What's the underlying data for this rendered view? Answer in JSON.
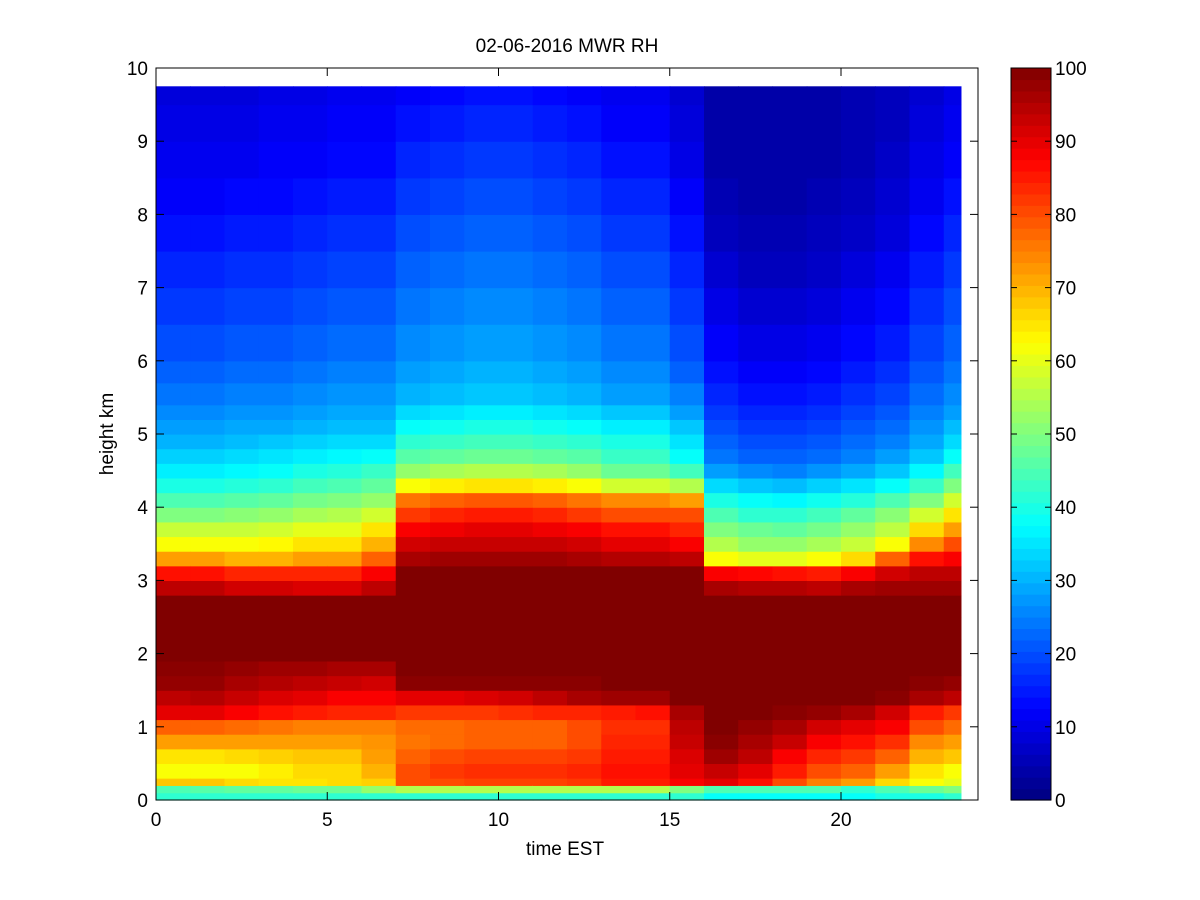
{
  "chart_data": {
    "type": "heatmap",
    "title": "02-06-2016 MWR RH",
    "xlabel": "time EST",
    "ylabel": "height km",
    "xlim": [
      0,
      24
    ],
    "ylim": [
      0,
      10
    ],
    "x_ticks": [
      0,
      5,
      10,
      15,
      20
    ],
    "y_ticks": [
      0,
      1,
      2,
      3,
      4,
      5,
      6,
      7,
      8,
      9,
      10
    ],
    "colorbar": {
      "min": 0,
      "max": 100,
      "ticks": [
        0,
        10,
        20,
        30,
        40,
        50,
        60,
        70,
        80,
        90,
        100
      ],
      "colormap": "jet"
    },
    "data_x_range": [
      0,
      23.5
    ],
    "data_y_top": 9.75,
    "times": [
      0,
      1,
      2,
      3,
      4,
      5,
      6,
      7,
      8,
      9,
      10,
      11,
      12,
      13,
      14,
      15,
      16,
      17,
      18,
      19,
      20,
      21,
      22,
      23
    ],
    "heights": [
      0,
      0.1,
      0.2,
      0.3,
      0.5,
      0.7,
      0.9,
      1.1,
      1.3,
      1.5,
      1.7,
      1.9,
      2.2,
      2.5,
      2.8,
      3.0,
      3.2,
      3.4,
      3.6,
      3.8,
      4.0,
      4.2,
      4.4,
      4.6,
      4.8,
      5.0,
      5.2,
      5.4,
      5.7,
      6.0,
      6.5,
      7.0,
      7.5,
      8.0,
      8.5,
      9.0,
      9.5
    ],
    "values": [
      [
        42,
        45,
        68,
        62,
        65,
        72,
        78,
        90,
        94,
        98,
        99,
        100,
        100,
        100,
        94,
        86,
        72,
        62,
        57,
        50,
        45,
        40,
        36,
        33,
        30,
        28,
        26,
        24,
        22,
        20,
        18,
        16,
        14,
        12,
        11,
        10,
        9
      ],
      [
        42,
        46,
        68,
        62,
        65,
        72,
        78,
        90,
        95,
        98,
        99,
        100,
        100,
        100,
        94,
        86,
        72,
        62,
        57,
        50,
        45,
        40,
        36,
        33,
        30,
        28,
        26,
        24,
        22,
        20,
        18,
        16,
        14,
        12,
        11,
        10,
        9
      ],
      [
        42,
        47,
        66,
        62,
        66,
        72,
        77,
        88,
        93,
        96,
        98,
        100,
        100,
        100,
        92,
        84,
        70,
        62,
        57,
        51,
        46,
        41,
        37,
        34,
        31,
        29,
        27,
        25,
        23,
        21,
        19,
        17,
        15,
        13,
        11,
        10,
        9
      ],
      [
        42,
        47,
        65,
        64,
        67,
        72,
        76,
        86,
        91,
        95,
        97,
        100,
        100,
        100,
        92,
        84,
        70,
        63,
        58,
        52,
        47,
        42,
        38,
        35,
        32,
        29,
        27,
        25,
        23,
        21,
        19,
        17,
        15,
        13,
        12,
        11,
        10
      ],
      [
        42,
        48,
        65,
        66,
        68,
        72,
        75,
        85,
        90,
        94,
        97,
        100,
        100,
        100,
        91,
        84,
        72,
        65,
        60,
        54,
        49,
        44,
        40,
        36,
        33,
        30,
        28,
        26,
        24,
        22,
        20,
        18,
        16,
        14,
        12,
        11,
        10
      ],
      [
        42,
        48,
        66,
        66,
        68,
        72,
        75,
        84,
        88,
        93,
        96,
        100,
        100,
        100,
        91,
        84,
        72,
        65,
        60,
        55,
        50,
        45,
        41,
        37,
        34,
        31,
        29,
        27,
        25,
        23,
        21,
        19,
        17,
        15,
        13,
        12,
        11
      ],
      [
        42,
        52,
        67,
        70,
        72,
        73,
        75,
        84,
        88,
        92,
        96,
        100,
        100,
        100,
        94,
        88,
        78,
        70,
        65,
        58,
        52,
        47,
        43,
        38,
        34,
        31,
        29,
        27,
        25,
        23,
        21,
        19,
        17,
        15,
        13,
        12,
        11
      ],
      [
        42,
        55,
        80,
        80,
        78,
        76,
        77,
        82,
        90,
        99,
        100,
        100,
        100,
        100,
        100,
        100,
        96,
        92,
        88,
        82,
        76,
        62,
        52,
        46,
        42,
        38,
        34,
        30,
        28,
        26,
        24,
        22,
        20,
        18,
        16,
        14,
        12
      ],
      [
        42,
        55,
        80,
        82,
        80,
        77,
        77,
        82,
        90,
        99,
        100,
        100,
        100,
        100,
        100,
        100,
        97,
        93,
        89,
        84,
        78,
        64,
        54,
        47,
        43,
        39,
        35,
        31,
        29,
        27,
        25,
        23,
        21,
        19,
        17,
        15,
        13
      ],
      [
        42,
        55,
        81,
        83,
        81,
        78,
        78,
        82,
        91,
        99,
        100,
        100,
        100,
        100,
        100,
        100,
        97,
        93,
        90,
        85,
        79,
        65,
        55,
        48,
        44,
        40,
        36,
        32,
        30,
        28,
        26,
        24,
        22,
        20,
        18,
        16,
        14
      ],
      [
        42,
        55,
        81,
        83,
        81,
        78,
        78,
        83,
        92,
        99,
        100,
        100,
        100,
        100,
        100,
        100,
        97,
        93,
        90,
        85,
        79,
        65,
        55,
        48,
        44,
        40,
        36,
        32,
        30,
        28,
        26,
        24,
        22,
        20,
        18,
        16,
        14
      ],
      [
        42,
        55,
        81,
        83,
        81,
        78,
        78,
        84,
        94,
        99,
        100,
        100,
        100,
        100,
        100,
        100,
        97,
        93,
        89,
        84,
        78,
        64,
        54,
        47,
        43,
        39,
        35,
        31,
        29,
        27,
        25,
        23,
        21,
        19,
        17,
        15,
        13
      ],
      [
        42,
        55,
        82,
        84,
        82,
        80,
        80,
        84,
        96,
        99,
        100,
        100,
        100,
        100,
        100,
        100,
        96,
        92,
        88,
        82,
        76,
        62,
        52,
        46,
        42,
        38,
        34,
        30,
        28,
        26,
        24,
        22,
        20,
        18,
        16,
        14,
        12
      ],
      [
        42,
        55,
        85,
        86,
        85,
        84,
        83,
        85,
        97,
        100,
        100,
        100,
        100,
        100,
        100,
        100,
        95,
        90,
        86,
        80,
        74,
        58,
        48,
        43,
        40,
        36,
        32,
        28,
        26,
        24,
        22,
        20,
        18,
        16,
        14,
        12,
        11
      ],
      [
        42,
        55,
        85,
        86,
        85,
        84,
        83,
        86,
        97,
        100,
        100,
        100,
        100,
        100,
        100,
        100,
        95,
        90,
        86,
        80,
        74,
        58,
        48,
        43,
        40,
        36,
        32,
        28,
        26,
        24,
        22,
        20,
        18,
        16,
        14,
        12,
        11
      ],
      [
        42,
        50,
        88,
        90,
        91,
        93,
        94,
        96,
        100,
        100,
        100,
        100,
        100,
        100,
        100,
        100,
        94,
        88,
        84,
        80,
        72,
        55,
        44,
        38,
        35,
        32,
        28,
        25,
        22,
        20,
        18,
        16,
        14,
        12,
        10,
        9,
        8
      ],
      [
        38,
        45,
        90,
        93,
        97,
        99,
        100,
        100,
        100,
        100,
        100,
        100,
        100,
        100,
        96,
        88,
        62,
        55,
        50,
        45,
        40,
        34,
        28,
        24,
        22,
        20,
        18,
        16,
        14,
        12,
        10,
        8,
        6,
        5,
        4,
        4,
        4
      ],
      [
        38,
        45,
        86,
        90,
        94,
        96,
        98,
        100,
        100,
        100,
        100,
        100,
        100,
        100,
        95,
        87,
        60,
        52,
        48,
        42,
        38,
        32,
        26,
        22,
        20,
        18,
        16,
        14,
        12,
        10,
        8,
        6,
        5,
        4,
        4,
        4,
        4
      ],
      [
        38,
        45,
        80,
        85,
        88,
        93,
        96,
        99,
        100,
        100,
        100,
        100,
        100,
        100,
        95,
        86,
        60,
        52,
        47,
        42,
        37,
        31,
        25,
        22,
        20,
        18,
        16,
        14,
        12,
        10,
        8,
        6,
        5,
        4,
        4,
        4,
        4
      ],
      [
        38,
        45,
        75,
        80,
        84,
        88,
        92,
        98,
        100,
        100,
        100,
        100,
        100,
        100,
        94,
        85,
        62,
        54,
        49,
        44,
        39,
        33,
        27,
        23,
        21,
        19,
        17,
        15,
        13,
        11,
        9,
        7,
        6,
        5,
        4,
        4,
        4
      ],
      [
        38,
        42,
        72,
        78,
        82,
        86,
        90,
        96,
        100,
        100,
        100,
        100,
        100,
        100,
        96,
        88,
        66,
        57,
        52,
        47,
        41,
        35,
        29,
        25,
        23,
        21,
        19,
        17,
        15,
        13,
        11,
        9,
        7,
        6,
        5,
        5,
        5
      ],
      [
        40,
        45,
        66,
        72,
        78,
        83,
        88,
        92,
        99,
        100,
        100,
        100,
        100,
        100,
        97,
        92,
        78,
        62,
        56,
        51,
        45,
        38,
        32,
        28,
        25,
        23,
        21,
        19,
        17,
        15,
        13,
        11,
        9,
        8,
        7,
        6,
        6
      ],
      [
        40,
        48,
        62,
        65,
        70,
        74,
        80,
        85,
        96,
        99,
        100,
        100,
        100,
        100,
        97,
        94,
        86,
        74,
        66,
        58,
        50,
        43,
        37,
        32,
        29,
        27,
        25,
        23,
        21,
        19,
        17,
        15,
        13,
        11,
        10,
        9,
        8
      ],
      [
        42,
        50,
        60,
        62,
        68,
        72,
        77,
        82,
        94,
        98,
        100,
        100,
        100,
        100,
        97,
        94,
        88,
        80,
        72,
        65,
        58,
        50,
        44,
        38,
        34,
        31,
        28,
        26,
        24,
        22,
        20,
        18,
        16,
        14,
        12,
        11,
        10
      ]
    ]
  }
}
